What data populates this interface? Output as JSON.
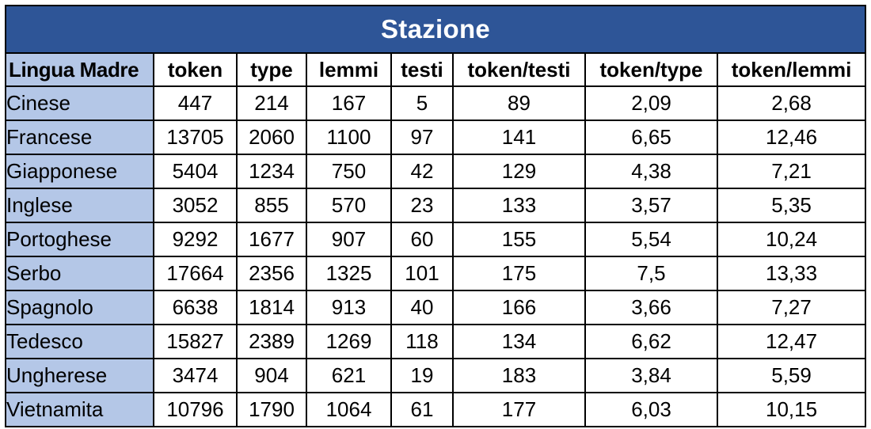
{
  "title": "Stazione",
  "headers": [
    "Lingua Madre",
    "token",
    "type",
    "lemmi",
    "testi",
    "token/testi",
    "token/type",
    "token/lemmi"
  ],
  "rows": [
    [
      "Cinese",
      "447",
      "214",
      "167",
      "5",
      "89",
      "2,09",
      "2,68"
    ],
    [
      "Francese",
      "13705",
      "2060",
      "1100",
      "97",
      "141",
      "6,65",
      "12,46"
    ],
    [
      "Giapponese",
      "5404",
      "1234",
      "750",
      "42",
      "129",
      "4,38",
      "7,21"
    ],
    [
      "Inglese",
      "3052",
      "855",
      "570",
      "23",
      "133",
      "3,57",
      "5,35"
    ],
    [
      "Portoghese",
      "9292",
      "1677",
      "907",
      "60",
      "155",
      "5,54",
      "10,24"
    ],
    [
      "Serbo",
      "17664",
      "2356",
      "1325",
      "101",
      "175",
      "7,5",
      "13,33"
    ],
    [
      "Spagnolo",
      "6638",
      "1814",
      "913",
      "40",
      "166",
      "3,66",
      "7,27"
    ],
    [
      "Tedesco",
      "15827",
      "2389",
      "1269",
      "118",
      "134",
      "6,62",
      "12,47"
    ],
    [
      "Ungherese",
      "3474",
      "904",
      "621",
      "19",
      "183",
      "3,84",
      "5,59"
    ],
    [
      "Vietnamita",
      "10796",
      "1790",
      "1064",
      "61",
      "177",
      "6,03",
      "10,15"
    ]
  ],
  "colors": {
    "title_background": "#2e5597",
    "language_column_background": "#b4c7e7"
  }
}
